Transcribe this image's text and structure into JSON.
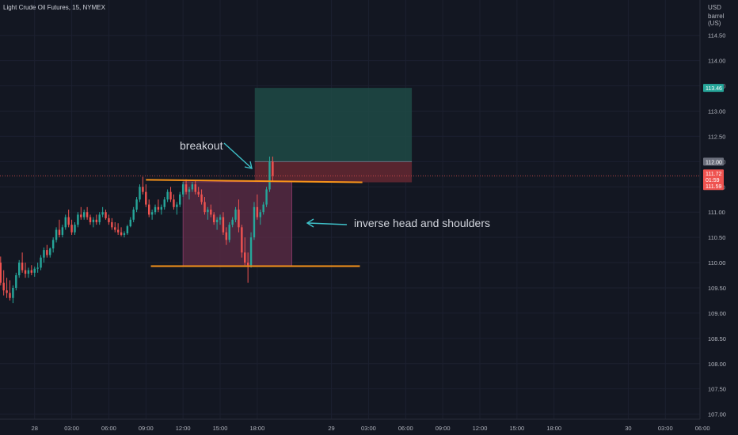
{
  "header": {
    "symbol_title": "Light Crude Oil Futures, 15, NYMEX"
  },
  "price_scale": {
    "unit_line1": "USD",
    "unit_line2": "barrel (US)"
  },
  "annotations": {
    "breakout": "breakout",
    "pattern": "inverse head and shoulders"
  },
  "colors": {
    "background": "#131722",
    "up": "#26a69a",
    "down": "#ef5350",
    "trendline": "#f7931a",
    "target_zone": "#1e4a45",
    "stop_zone": "#5c2630",
    "pattern_zone": "#5a2a45",
    "arrow": "#3fc1c9"
  },
  "chart_data": {
    "type": "candlestick",
    "title": "Light Crude Oil Futures, 15, NYMEX",
    "ylim": [
      106.9,
      115.2
    ],
    "y_ticks": [
      "114.50",
      "114.00",
      "113.50",
      "113.00",
      "112.50",
      "112.00",
      "111.50",
      "111.00",
      "110.50",
      "110.00",
      "109.50",
      "109.00",
      "108.50",
      "108.00",
      "107.50",
      "107.00"
    ],
    "x_tick_labels": [
      "28",
      "03:00",
      "06:00",
      "09:00",
      "12:00",
      "15:00",
      "18:00",
      "29",
      "03:00",
      "06:00",
      "09:00",
      "12:00",
      "15:00",
      "18:00",
      "30",
      "03:00",
      "06:00"
    ],
    "x_tick_hours": [
      0,
      3,
      6,
      9,
      12,
      15,
      18,
      24,
      27,
      30,
      33,
      36,
      39,
      42,
      48,
      51,
      54
    ],
    "x_range_hours": [
      -2.8,
      53.8
    ],
    "price_labels": [
      {
        "text": "113.46",
        "value": 113.46,
        "kind": "target"
      },
      {
        "text": "112.00",
        "value": 112.0,
        "kind": "entry"
      },
      {
        "text": "111.72",
        "value": 111.72,
        "kind": "last"
      },
      {
        "text": "01:59",
        "value": 111.65,
        "kind": "countdown"
      },
      {
        "text": "111.59",
        "value": 111.59,
        "kind": "stop"
      }
    ],
    "current_price": 111.72,
    "position": {
      "entry": 112.0,
      "target": 113.46,
      "stop": 111.59,
      "start_hour": 17.8,
      "end_hour": 30.5
    },
    "pattern_box": {
      "top": 111.6,
      "bottom": 109.93,
      "start_hour": 12.0,
      "end_hour": 20.8
    },
    "neckline": {
      "x1": 9.0,
      "y1": 111.64,
      "x2": 26.5,
      "y2": 111.59
    },
    "support_line": {
      "x1": 9.4,
      "y1": 109.93,
      "x2": 26.3,
      "y2": 109.93
    },
    "candle_start_hour": -2.75,
    "candle_interval_hours": 0.25,
    "candles": [
      [
        110.0,
        110.12,
        109.55,
        109.6
      ],
      [
        109.6,
        109.85,
        109.35,
        109.45
      ],
      [
        109.45,
        109.7,
        109.3,
        109.4
      ],
      [
        109.4,
        109.65,
        109.25,
        109.3
      ],
      [
        109.3,
        109.55,
        109.2,
        109.5
      ],
      [
        109.5,
        109.8,
        109.45,
        109.75
      ],
      [
        109.75,
        110.05,
        109.7,
        110.0
      ],
      [
        110.0,
        110.2,
        109.8,
        109.85
      ],
      [
        109.85,
        110.0,
        109.7,
        109.78
      ],
      [
        109.78,
        109.9,
        109.7,
        109.85
      ],
      [
        109.85,
        109.95,
        109.75,
        109.8
      ],
      [
        109.8,
        109.92,
        109.72,
        109.88
      ],
      [
        109.88,
        110.0,
        109.8,
        109.9
      ],
      [
        109.9,
        110.15,
        109.85,
        110.1
      ],
      [
        110.1,
        110.3,
        110.0,
        110.25
      ],
      [
        110.25,
        110.35,
        110.1,
        110.15
      ],
      [
        110.15,
        110.3,
        110.1,
        110.28
      ],
      [
        110.28,
        110.5,
        110.2,
        110.45
      ],
      [
        110.45,
        110.7,
        110.4,
        110.65
      ],
      [
        110.65,
        110.85,
        110.5,
        110.55
      ],
      [
        110.55,
        110.75,
        110.5,
        110.7
      ],
      [
        110.7,
        110.95,
        110.65,
        110.9
      ],
      [
        110.9,
        111.05,
        110.7,
        110.75
      ],
      [
        110.75,
        110.85,
        110.55,
        110.6
      ],
      [
        110.6,
        110.8,
        110.55,
        110.75
      ],
      [
        110.75,
        111.0,
        110.7,
        110.95
      ],
      [
        110.95,
        111.1,
        110.85,
        110.9
      ],
      [
        110.9,
        111.05,
        110.85,
        111.0
      ],
      [
        111.0,
        111.1,
        110.85,
        110.9
      ],
      [
        110.9,
        110.95,
        110.75,
        110.8
      ],
      [
        110.8,
        110.9,
        110.7,
        110.85
      ],
      [
        110.85,
        110.95,
        110.75,
        110.8
      ],
      [
        110.8,
        111.0,
        110.75,
        110.95
      ],
      [
        110.95,
        111.1,
        110.9,
        111.0
      ],
      [
        111.0,
        111.05,
        110.85,
        110.88
      ],
      [
        110.88,
        110.95,
        110.75,
        110.8
      ],
      [
        110.8,
        110.88,
        110.65,
        110.7
      ],
      [
        110.7,
        110.8,
        110.6,
        110.65
      ],
      [
        110.65,
        110.78,
        110.55,
        110.6
      ],
      [
        110.6,
        110.7,
        110.52,
        110.55
      ],
      [
        110.55,
        110.62,
        110.5,
        110.58
      ],
      [
        110.58,
        110.75,
        110.55,
        110.72
      ],
      [
        110.72,
        110.9,
        110.7,
        110.85
      ],
      [
        110.85,
        111.1,
        110.8,
        111.05
      ],
      [
        111.05,
        111.3,
        111.0,
        111.25
      ],
      [
        111.25,
        111.55,
        111.2,
        111.5
      ],
      [
        111.5,
        111.7,
        111.35,
        111.4
      ],
      [
        111.4,
        111.55,
        111.1,
        111.15
      ],
      [
        111.15,
        111.25,
        110.9,
        110.95
      ],
      [
        110.95,
        111.05,
        110.85,
        111.0
      ],
      [
        111.0,
        111.15,
        110.95,
        111.1
      ],
      [
        111.1,
        111.25,
        111.0,
        111.05
      ],
      [
        111.05,
        111.15,
        110.95,
        111.1
      ],
      [
        111.1,
        111.3,
        111.05,
        111.25
      ],
      [
        111.25,
        111.45,
        111.2,
        111.4
      ],
      [
        111.4,
        111.5,
        111.2,
        111.25
      ],
      [
        111.25,
        111.35,
        111.05,
        111.1
      ],
      [
        111.1,
        111.2,
        110.95,
        111.15
      ],
      [
        111.15,
        111.4,
        111.1,
        111.35
      ],
      [
        111.35,
        111.6,
        111.3,
        111.55
      ],
      [
        111.55,
        111.65,
        111.35,
        111.4
      ],
      [
        111.4,
        111.5,
        111.25,
        111.45
      ],
      [
        111.45,
        111.6,
        111.4,
        111.55
      ],
      [
        111.55,
        111.62,
        111.35,
        111.4
      ],
      [
        111.4,
        111.5,
        111.3,
        111.35
      ],
      [
        111.35,
        111.45,
        111.15,
        111.2
      ],
      [
        111.2,
        111.3,
        110.95,
        111.0
      ],
      [
        111.0,
        111.1,
        110.85,
        111.05
      ],
      [
        111.05,
        111.15,
        110.9,
        110.95
      ],
      [
        110.95,
        111.0,
        110.75,
        110.8
      ],
      [
        110.8,
        110.9,
        110.65,
        110.85
      ],
      [
        110.85,
        110.95,
        110.75,
        110.9
      ],
      [
        110.9,
        111.0,
        110.55,
        110.6
      ],
      [
        110.6,
        110.7,
        110.35,
        110.45
      ],
      [
        110.45,
        110.8,
        110.4,
        110.75
      ],
      [
        110.75,
        110.9,
        110.7,
        110.85
      ],
      [
        110.85,
        111.1,
        110.8,
        111.05
      ],
      [
        111.05,
        111.25,
        110.6,
        110.7
      ],
      [
        110.7,
        110.75,
        110.1,
        110.2
      ],
      [
        110.2,
        110.5,
        109.95,
        110.0
      ],
      [
        110.0,
        110.2,
        109.6,
        109.95
      ],
      [
        109.95,
        110.6,
        109.9,
        110.5
      ],
      [
        110.5,
        111.2,
        110.45,
        111.1
      ],
      [
        111.1,
        111.35,
        110.85,
        110.9
      ],
      [
        110.9,
        111.05,
        110.75,
        111.0
      ],
      [
        111.0,
        111.2,
        110.95,
        111.15
      ],
      [
        111.15,
        111.5,
        111.1,
        111.45
      ],
      [
        111.45,
        112.1,
        111.4,
        112.0
      ],
      [
        112.0,
        112.1,
        111.6,
        111.72
      ]
    ]
  }
}
